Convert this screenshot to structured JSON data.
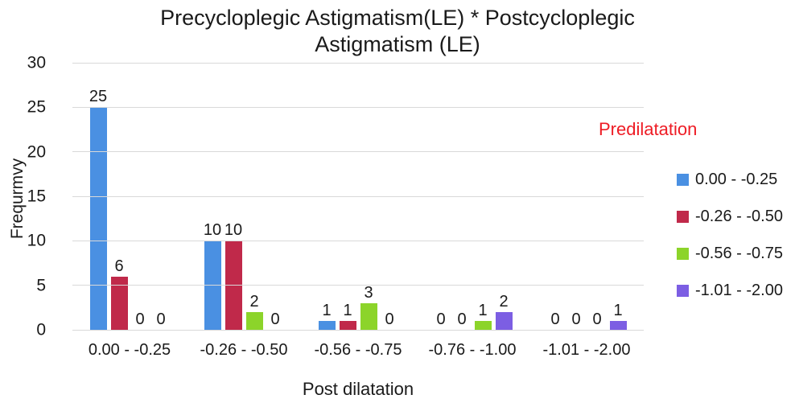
{
  "chart_data": {
    "type": "bar",
    "title": "Precycloplegic Astigmatism(LE) * Postcycloplegic Astigmatism (LE)",
    "title_lines": [
      "Precycloplegic Astigmatism(LE) * Postcycloplegic",
      "Astigmatism (LE)"
    ],
    "ylabel": "Frequrmvy",
    "xlabel": "Post dilatation",
    "legend_title": "Predilatation",
    "legend_title_color": "#ee1c25",
    "legend_position": "right",
    "grid": true,
    "gridline_color": "#d9d9d9",
    "text_color": "#1a1a1a",
    "ylim": [
      0,
      30
    ],
    "yticks": [
      0,
      5,
      10,
      15,
      20,
      25,
      30
    ],
    "categories": [
      "0.00 - -0.25",
      "-0.26 - -0.50",
      "-0.56 - -0.75",
      "-0.76 - -1.00",
      "-1.01 - -2.00"
    ],
    "series": [
      {
        "name": "0.00 - -0.25",
        "color": "#4a90e2",
        "values": [
          25,
          10,
          1,
          0,
          0
        ]
      },
      {
        "name": "-0.26 - -0.50",
        "color": "#c0294a",
        "values": [
          6,
          10,
          1,
          0,
          0
        ]
      },
      {
        "name": "-0.56 - -0.75",
        "color": "#8cd42a",
        "values": [
          0,
          2,
          3,
          1,
          0
        ]
      },
      {
        "name": "-1.01 - -2.00",
        "color": "#7c5ee3",
        "values": [
          0,
          0,
          0,
          2,
          1
        ]
      }
    ],
    "data_labels_shown": true
  }
}
